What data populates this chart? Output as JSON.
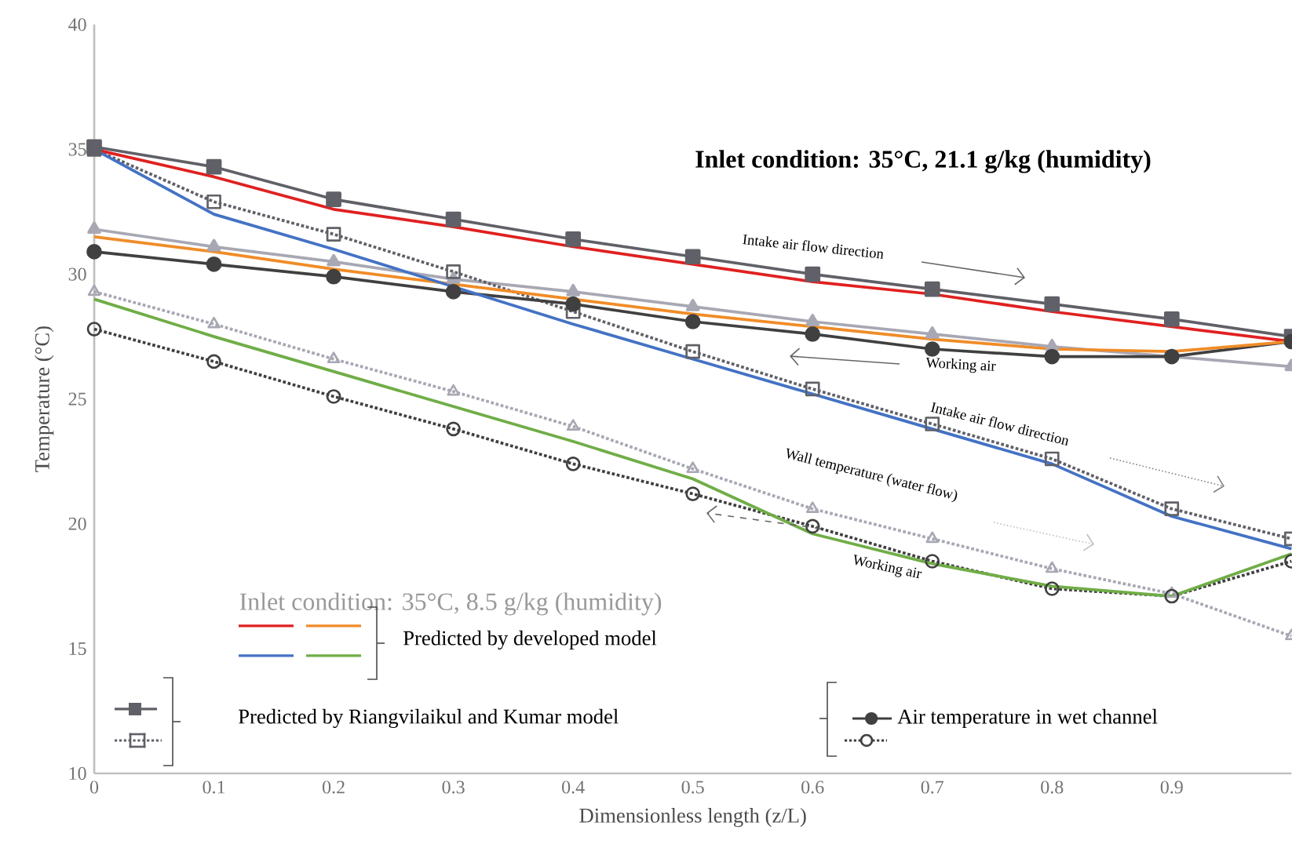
{
  "chart_data": {
    "type": "line",
    "xlabel": "Dimensionless length (z/L)",
    "ylabel": "Temperature (°C)",
    "x": [
      0,
      0.1,
      0.2,
      0.3,
      0.4,
      0.5,
      0.6,
      0.7,
      0.8,
      0.9,
      1.0
    ],
    "xlim": [
      0,
      1
    ],
    "ylim": [
      10,
      40
    ],
    "xticks": [
      0,
      0.1,
      0.2,
      0.3,
      0.4,
      0.5,
      0.6,
      0.7,
      0.8,
      0.9
    ],
    "yticks": [
      10,
      15,
      20,
      25,
      30,
      35,
      40
    ],
    "series": [
      {
        "color": "#a8a8b4",
        "marker": "triangle",
        "line_style": "solid",
        "values": [
          31.8,
          31.1,
          30.5,
          29.8,
          29.3,
          28.7,
          28.1,
          27.6,
          27.1,
          26.7,
          26.3
        ]
      },
      {
        "color": "#a8a8b4",
        "marker": "triangle",
        "line_style": "dotted",
        "values": [
          29.3,
          28.0,
          26.6,
          25.3,
          23.9,
          22.2,
          20.6,
          19.4,
          18.2,
          17.2,
          15.5
        ]
      },
      {
        "color": "#606068",
        "marker": "square",
        "line_style": "solid",
        "values": [
          35.1,
          34.3,
          33.0,
          32.2,
          31.4,
          30.7,
          30.0,
          29.4,
          28.8,
          28.2,
          27.5
        ]
      },
      {
        "color": "#606068",
        "marker": "square",
        "line_style": "dotted",
        "values": [
          35.0,
          32.9,
          31.6,
          30.1,
          28.5,
          26.9,
          25.4,
          24.0,
          22.6,
          20.6,
          19.4
        ]
      },
      {
        "color": "#404040",
        "marker": "circle",
        "line_style": "solid",
        "values": [
          30.9,
          30.4,
          29.9,
          29.3,
          28.8,
          28.1,
          27.6,
          27.0,
          26.7,
          26.7,
          27.3
        ]
      },
      {
        "color": "#404040",
        "marker": "circle",
        "line_style": "dotted",
        "values": [
          27.8,
          26.5,
          25.1,
          23.8,
          22.4,
          21.2,
          19.9,
          18.5,
          17.4,
          17.1,
          18.5
        ]
      },
      {
        "color": "#e02020",
        "line_style": "solid",
        "values": [
          35.0,
          33.9,
          32.6,
          31.9,
          31.1,
          30.4,
          29.7,
          29.2,
          28.5,
          27.9,
          27.3
        ]
      },
      {
        "color": "#f08c28",
        "line_style": "solid",
        "values": [
          31.5,
          30.9,
          30.2,
          29.6,
          29.0,
          28.4,
          27.9,
          27.4,
          27.0,
          26.9,
          27.3
        ]
      },
      {
        "color": "#4472c4",
        "line_style": "solid",
        "values": [
          35.0,
          32.4,
          31.0,
          29.5,
          28.0,
          26.6,
          25.2,
          23.8,
          22.4,
          20.3,
          19.0
        ]
      },
      {
        "color": "#70ad47",
        "line_style": "solid",
        "values": [
          29.0,
          27.5,
          26.1,
          24.7,
          23.3,
          21.8,
          19.6,
          18.4,
          17.5,
          17.1,
          18.8
        ]
      }
    ],
    "annotations": [
      "Inlet condition: 35°C, 21.1 g/kg (humidity)",
      "Intake air flow direction",
      "Working air",
      "Intake air flow direction",
      "Wall temperature (water flow)",
      "Working air",
      "Inlet condition: 35°C, 8.5 g/kg (humidity)",
      "Predicted by developed model",
      "Predicted by Riangvilaikul and Kumar model",
      "Air temperature in wet channel"
    ]
  }
}
